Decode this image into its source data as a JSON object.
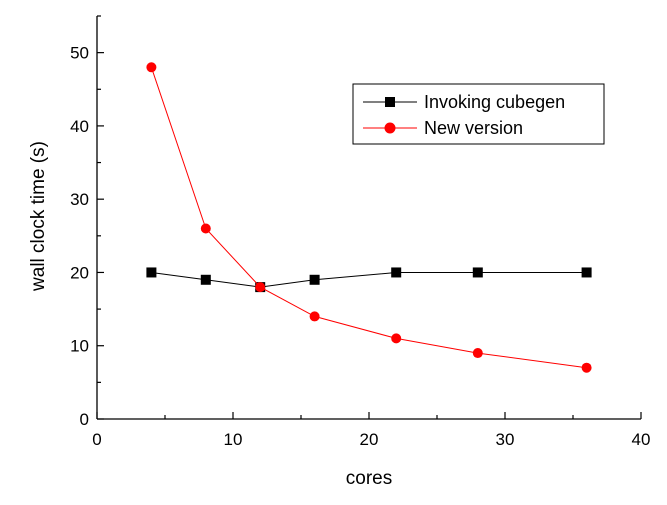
{
  "chart_data": {
    "type": "line",
    "title": "",
    "xlabel": "cores",
    "ylabel": "wall clock time (s)",
    "xlim": [
      0,
      40
    ],
    "ylim": [
      0,
      55
    ],
    "xticks": [
      0,
      10,
      20,
      30,
      40
    ],
    "yticks": [
      0,
      10,
      20,
      30,
      40,
      50
    ],
    "grid": false,
    "legend_position": "top-right",
    "series": [
      {
        "name": "Invoking cubegen",
        "marker": "square",
        "color": "#000000",
        "x": [
          4,
          8,
          12,
          16,
          22,
          28,
          36
        ],
        "y": [
          20,
          19,
          18,
          19,
          20,
          20,
          20
        ]
      },
      {
        "name": "New version",
        "marker": "circle",
        "color": "#ff0000",
        "x": [
          4,
          8,
          12,
          16,
          22,
          28,
          36
        ],
        "y": [
          48,
          26,
          18,
          14,
          11,
          9,
          7
        ]
      }
    ]
  }
}
